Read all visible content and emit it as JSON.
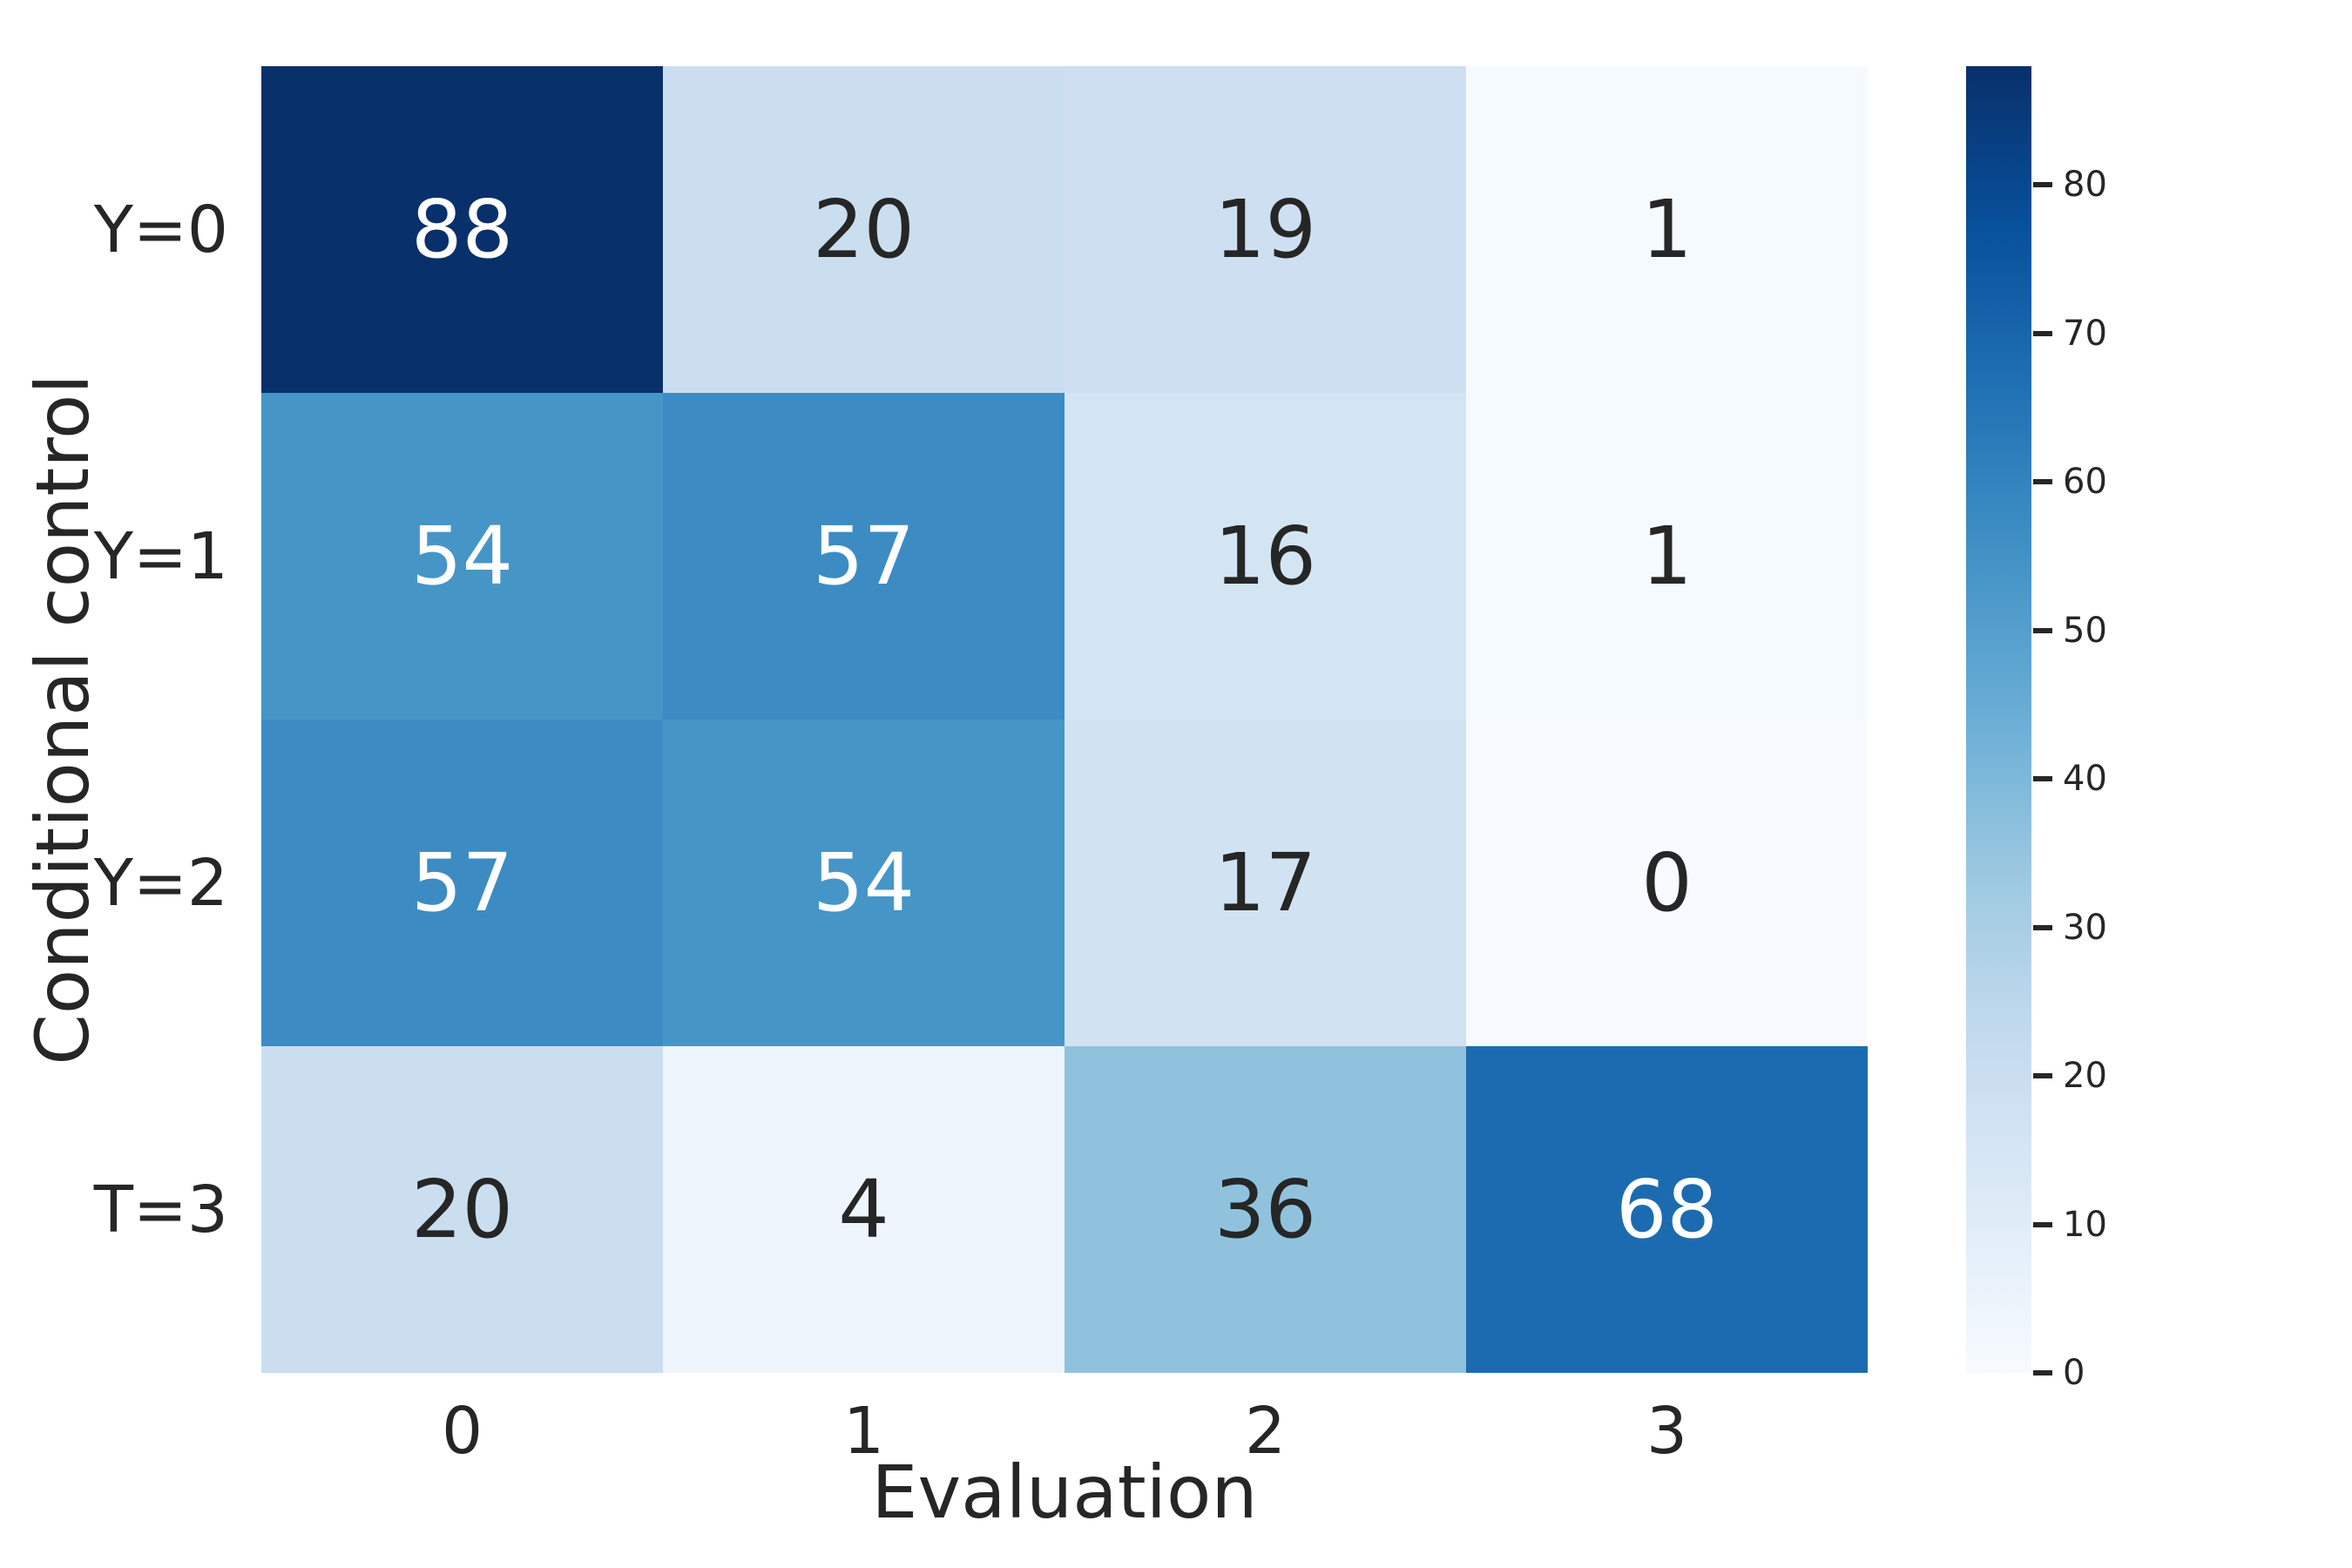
{
  "chart_data": {
    "type": "heatmap",
    "title": "",
    "xlabel": "Evaluation",
    "ylabel": "Conditional control",
    "row_labels": [
      "Y=0",
      "Y=1",
      "Y=2",
      "T=3"
    ],
    "col_labels": [
      "0",
      "1",
      "2",
      "3"
    ],
    "values": [
      [
        88,
        20,
        19,
        1
      ],
      [
        54,
        57,
        16,
        1
      ],
      [
        57,
        54,
        17,
        0
      ],
      [
        20,
        4,
        36,
        68
      ]
    ],
    "vmin": 0,
    "vmax": 88,
    "colormap": "Blues",
    "colormap_anchors": [
      "#f7fbff",
      "#deebf7",
      "#c6dbef",
      "#9ecae1",
      "#6baed6",
      "#4292c6",
      "#2171b5",
      "#08519c",
      "#08306b"
    ],
    "colorbar_ticks": [
      0,
      10,
      20,
      30,
      40,
      50,
      60,
      70,
      80
    ],
    "annotation_color_dark": "#262626",
    "annotation_color_light": "#ffffff",
    "tick_text_color": "#262626",
    "background_color": "#ffffff",
    "grid": false,
    "legend_position": "right-colorbar"
  }
}
